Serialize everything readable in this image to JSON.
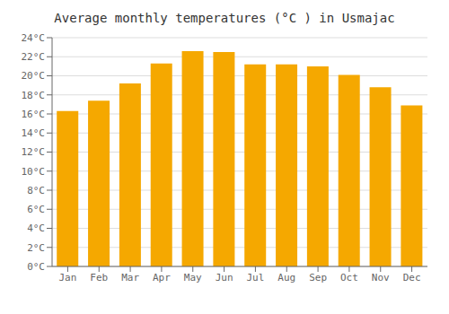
{
  "chart_data": {
    "type": "bar",
    "title": "Average monthly temperatures (°C ) in Usmajac",
    "categories": [
      "Jan",
      "Feb",
      "Mar",
      "Apr",
      "May",
      "Jun",
      "Jul",
      "Aug",
      "Sep",
      "Oct",
      "Nov",
      "Dec"
    ],
    "values": [
      16.3,
      17.4,
      19.2,
      21.3,
      22.6,
      22.5,
      21.2,
      21.2,
      21.0,
      20.1,
      18.8,
      16.9
    ],
    "color": "#F5A800",
    "ylim": [
      0,
      24
    ],
    "yticks": [
      {
        "value": 0,
        "label": "0°C"
      },
      {
        "value": 2,
        "label": "2°C"
      },
      {
        "value": 4,
        "label": "4°C"
      },
      {
        "value": 6,
        "label": "6°C"
      },
      {
        "value": 8,
        "label": "8°C"
      },
      {
        "value": 10,
        "label": "10°C"
      },
      {
        "value": 12,
        "label": "12°C"
      },
      {
        "value": 14,
        "label": "14°C"
      },
      {
        "value": 16,
        "label": "16°C"
      },
      {
        "value": 18,
        "label": "18°C"
      },
      {
        "value": 20,
        "label": "20°C"
      },
      {
        "value": 22,
        "label": "22°C"
      },
      {
        "value": 24,
        "label": "24°C"
      }
    ],
    "grid": true
  }
}
